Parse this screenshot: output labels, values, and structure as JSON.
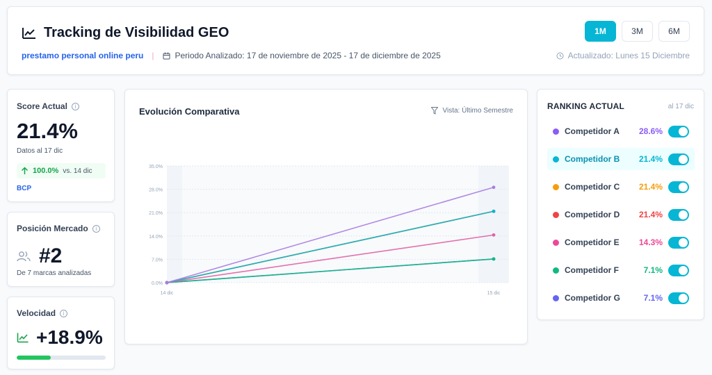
{
  "header": {
    "title": "Tracking de Visibilidad GEO",
    "keyword": "prestamo personal online peru",
    "separator": "|",
    "period": "Periodo Analizado: 17 de noviembre de 2025 - 17 de diciembre de 2025",
    "updated": "Actualizado: Lunes 15 Diciembre",
    "ranges": [
      {
        "label": "1M",
        "active": true
      },
      {
        "label": "3M",
        "active": false
      },
      {
        "label": "6M",
        "active": false
      }
    ]
  },
  "score": {
    "label": "Score Actual",
    "value": "21.4%",
    "date_note": "Datos al 17 dic",
    "delta_pct": "100.0%",
    "delta_vs": "vs. 14 dic",
    "brand": "BCP"
  },
  "position": {
    "label": "Posición Mercado",
    "value": "#2",
    "note": "De 7 marcas analizadas"
  },
  "velocity": {
    "label": "Velocidad",
    "value": "+18.9%",
    "bar_fraction": 0.38
  },
  "chart": {
    "title": "Evolución Comparativa",
    "view": "Vista: Último Semestre"
  },
  "chart_data": {
    "type": "line",
    "x": [
      "14 dic",
      "15 dic"
    ],
    "yticks": [
      "0.0%",
      "7.0%",
      "14.0%",
      "21.0%",
      "28.0%",
      "35.0%"
    ],
    "ylim": [
      0,
      35
    ],
    "grid": true,
    "series": [
      {
        "name": "Competidor A",
        "color": "#a97ce0",
        "values": [
          0,
          28.6
        ]
      },
      {
        "name": "Competidor B",
        "color": "#06b6d4",
        "values": [
          0,
          21.4
        ]
      },
      {
        "name": "Competidor C",
        "color": "#f59e0b",
        "values": [
          0,
          21.4
        ]
      },
      {
        "name": "Competidor D",
        "color": "#c0595b",
        "values": [
          0,
          21.4
        ]
      },
      {
        "name": "Competidor E",
        "color": "#e160a4",
        "values": [
          0,
          14.3
        ]
      },
      {
        "name": "Competidor F",
        "color": "#10b981",
        "values": [
          0,
          7.1
        ]
      },
      {
        "name": "Competidor G",
        "color": "#5b6ee1",
        "values": [
          0,
          7.1
        ]
      }
    ]
  },
  "ranking": {
    "title": "RANKING ACTUAL",
    "date": "al 17 dic",
    "items": [
      {
        "name": "Competidor A",
        "value": "28.6%",
        "color": "#8b5cf6",
        "selected": false
      },
      {
        "name": "Competidor B",
        "value": "21.4%",
        "color": "#06b6d4",
        "selected": true
      },
      {
        "name": "Competidor C",
        "value": "21.4%",
        "color": "#f59e0b",
        "selected": false
      },
      {
        "name": "Competidor D",
        "value": "21.4%",
        "color": "#ef4444",
        "selected": false
      },
      {
        "name": "Competidor E",
        "value": "14.3%",
        "color": "#ec4899",
        "selected": false
      },
      {
        "name": "Competidor F",
        "value": "7.1%",
        "color": "#10b981",
        "selected": false
      },
      {
        "name": "Competidor G",
        "value": "7.1%",
        "color": "#6366f1",
        "selected": false
      }
    ]
  },
  "icons": {
    "title": "trending-up-icon",
    "calendar": "calendar-icon",
    "clock": "clock-icon",
    "info": "info-icon",
    "up": "arrow-up-icon",
    "users": "users-icon",
    "filter": "filter-icon"
  }
}
